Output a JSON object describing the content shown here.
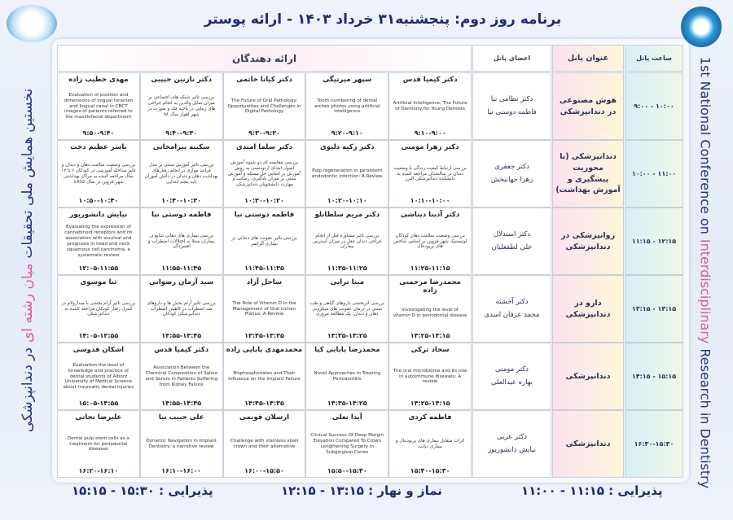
{
  "header": {
    "title": "برنامه روز دوم: پنجشنبه۳۱ خرداد ۱۴۰۳ - ارائه پوستر"
  },
  "side_left": [
    "نخستین همایش ملی تحقیقات",
    "میان رشته ای",
    "در دندانپزشکی"
  ],
  "side_right": [
    "1st National Conference on",
    "Interdisciplinary",
    "Research in Dentistry"
  ],
  "table": {
    "headers": {
      "time": "ساعت پانل",
      "title": "عنوان پانل",
      "members": "اعضای پانل",
      "presenters": "ارائه دهندگان"
    },
    "rows": [
      {
        "time": "۱۰:۰۰ - ۹:۰۰",
        "title": "هوش مصنوعی در دندانپزشکی",
        "members": [
          "دکتر نظامی نیا",
          "فاطمه دوستی نیا"
        ],
        "presenters": [
          {
            "name": "دکتر کیمیا قدس",
            "topic": "Artificial Intelligence: The Future of Dentistry for Young Dentists",
            "time": "۹:۱۰-۹:۰۰"
          },
          {
            "name": "سپهر میرتیگی",
            "topic": "Tooth numbering of dental arches photos using artificial intelligence",
            "time": "۹:۲۰-۹:۱۰"
          },
          {
            "name": "دکتر کیانا خاتمی",
            "topic": "The Future of Oral Pathology: Opportunities and Challenges in Digital Pathology",
            "time": "۹:۳۰-۹:۲۰"
          },
          {
            "name": "دکتر نازنین حبیبی",
            "topic": "بررسی تاثیر شبکه های اجتماعی بر میزان تمایل والدین به انجام جراحی های زیبایی در ناحیه فک و صورت در شهر اهواز سال ۹۸",
            "time": "۹:۴۰-۹:۳۰"
          },
          {
            "name": "مهدی خطیب زاده",
            "topic": "Evaluation of position and dimensions of lingual foramen and lingual canal in CBCT images of patients referred to the maxillofacial department",
            "time": "۹:۵۰-۹:۴۰"
          }
        ]
      },
      {
        "time": "۱۱:۰۰ - ۱۰:۰۰",
        "title": "دندانپزشکی (با محوریت پیشگیری و آموزش بهداشت)",
        "members": [
          "دکتر جعفری",
          "زهرا جهانبخش"
        ],
        "presenters": [
          {
            "name": "دکتر زهرا مومنی",
            "topic": "بررسی ارتباط کیفیت زندگی با وضعیت دندان در سالمندان مراجعه کننده به دانشکده دندانپزشکی البرز",
            "time": "۱۰:۱۰-۱۰:۰۰"
          },
          {
            "name": "دکتر زکیه دلیوی",
            "topic": "Pulp regeneration in persistent endodontic infection: A Review",
            "time": "۱۰:۲۰-۱۰:۱۰"
          },
          {
            "name": "دکتر سلما امیدی",
            "topic": "بررسی مقایسه ای دو شیوه آموزش اصول ابتدای ارتودنسی به روش آموزش بر اساس حل مسئله و آموزش سنتی بر میزان یادگیری، رضایت و مهارت دانشجویان دندانپزشکی",
            "time": "۱۰:۳۰-۱۰:۲۰"
          },
          {
            "name": "سکینه پیرامخانی",
            "topic": "بررسی تاثیر آموزش مبتنی بر مدل فرایند موازی بر انجام رفتارهای بهداشت دهان و دندان در دانش آموزان پایه پنجم ابتدایی",
            "time": "۱۰:۴۰-۱۰:۳۰"
          },
          {
            "name": "یاسر عظیم دخت",
            "topic": "بررسی وضعیت سلامت دهان و دندان و تاثیر مداخله آموزشی در کودکان ۶ تا ۱۲ سال مراجعه کننده به مراکز بهداشتی شهر قزوین در سال 1402",
            "time": "۱۰:۵۰-۱۰:۴۰"
          }
        ]
      },
      {
        "time": "۱۲:۱۵ - ۱۱:۱۵",
        "title": "روانپزشکی در دندانپزشکی",
        "members": [
          "دکتر استدلال",
          "علی لطفعلیان"
        ],
        "presenters": [
          {
            "name": "دکتر آدینا دیناشی",
            "topic": "بررسی وضعیت سلامت دهان کودکان اوتیستیک شهر قزوین بر اساس شاخص های پریودنتال",
            "time": "۱۱:۲۵-۱۱:۱۵"
          },
          {
            "name": "دکتر مریم سلطانلو",
            "topic": "بررسی تاثیر مشاوره قبل از انجام جراحی دندان عقل در میزان استرس بیماران",
            "time": "۱۱:۳۵-۱۱:۲۵"
          },
          {
            "name": "فاطمه دوستی نیا",
            "topic": "بررسی تاثیر عفونت های دندانی در بیماری آلزایمر",
            "time": "۱۱:۴۵-۱۱:۳۵"
          },
          {
            "name": "فاطمه دوستی نیا",
            "topic": "بررسی بیماری های دهانی شایع در بیماران مبتلا به اختلالات اضطراب و افسردگی",
            "time": "۱۱:۵۵-۱۱:۴۵"
          },
          {
            "name": "نیایش دانشوریور",
            "topic": "Evaluating the expression of cannabinoid receptors and its association with survival and prognosis in head and neck squamous cell carcinoma, a systematic review",
            "time": "۱۲:۰۵-۱۱:۵۵"
          }
        ]
      },
      {
        "time": "۱۴:۱۵ - ۱۳:۱۵",
        "title": "دارو در دندانپزشکی",
        "members": [
          "دکتر آخشته",
          "محمد عرفان اسدی"
        ],
        "presenters": [
          {
            "name": "محمدرضا مرحمتی زاده",
            "topic": "Investigating the level of vitamin D in periodontal disease",
            "time": "۱۳:۲۵-۱۳:۱۵"
          },
          {
            "name": "مینا ترابی",
            "topic": "بررسی اثربخشی داروهای گیاهی و طب سنتی در درمان عفونت های میکروبی دهان و دندان: یک مطالعه مروری",
            "time": "۱۳:۳۵-۱۳:۲۵"
          },
          {
            "name": "ساحل آزاد",
            "topic": "The Role of Vitamin D in the Management of Oral Lichen Planus: A Review",
            "time": "۱۳:۴۵-۱۳:۳۵"
          },
          {
            "name": "سید آرمان رضوانی",
            "topic": "بررسی تاثیر آرام بخش ها و داروهای ضد اضطراب در کاهش اضطراب دندانپزشکی کودکان",
            "time": "۱۳:۵۵-۱۳:۴۵"
          },
          {
            "name": "ثنا موسوی",
            "topic": "بررسی تاثیر آرام بخشی با میدازولام در کنترل رفتار کودکان مراجعه کننده به دندانپزشکی",
            "time": "۱۴:۰۵-۱۳:۵۵"
          }
        ]
      },
      {
        "time": "۱۵:۱۵ - ۱۴:۱۵",
        "title": "دندانپزشکی",
        "members": [
          "دکتر مومنی",
          "بهاره عبدالعلی"
        ],
        "presenters": [
          {
            "name": "سجاد ترکی",
            "topic": "The oral microbiome and its role in autoimmune diseases: A review",
            "time": "۱۴:۲۵-۱۴:۱۵"
          },
          {
            "name": "محمدرضا بابایی کیا",
            "topic": "Novel Approaches in Treating Periodontitis",
            "time": "۱۴:۳۵-۱۴:۲۵"
          },
          {
            "name": "محمدمهدی بابایی زاده",
            "topic": "Bisphosphonates and Their Influence on the Implant Failure",
            "time": "۱۴:۴۵-۱۴:۳۵"
          },
          {
            "name": "دکتر کیمیا قدس",
            "topic": "Association Between the Chemical Composition of Saliva and Serum in Patients Suffering from Kidney Failure",
            "time": "۱۴:۵۵-۱۴:۴۵"
          },
          {
            "name": "اشکان قدوسی",
            "topic": "Evaluation the level of knowledge and practice of dental students of Alborz University of Medical Science about traumatic dental injuries",
            "time": "۱۵:۰۵-۱۴:۵۵"
          }
        ]
      },
      {
        "time": "۱۶:۳۰-۱۵:۳۰",
        "title": "دندانپزشکی",
        "members": [
          "دکتر عربی",
          "نیایش دانشوریور"
        ],
        "presenters": [
          {
            "name": "فاطمه کردی",
            "topic": "اثرات متقابل بیماری های پریودنتال و بیماری دیابت",
            "time": "۱۵:۴۰-۱۵:۳۰"
          },
          {
            "name": "آیدا نعلی",
            "topic": "Clinical Success Of Deep Margin Elevation Compared To Crown Lengthening Surgery In Subgingival Caries",
            "time": "۱۵:۵۰-۱۵:۴۰"
          },
          {
            "name": "ارسلان قویمی",
            "topic": "Challenge with stainless steel crown and their alternative",
            "time": "۱۶:۰۰-۱۵:۵۰"
          },
          {
            "name": "علی حبیب نیا",
            "topic": "Dynamic Navigation in Implant Dentistry: a narrative review",
            "time": "۱۶:۱۰-۱۶:۰۰"
          },
          {
            "name": "علیرضا نجاتی",
            "topic": "Dental pulp stem cells as a treatment for periodontal diseases",
            "time": "۱۶:۲۰-۱۶:۱۰"
          }
        ]
      }
    ]
  },
  "footer": [
    "پذیرایی : ۱۱:۱۵ - ۱۱:۰۰",
    "نماز و نهار : ۱۳:۱۵ - ۱۲:۱۵",
    "پذیرایی : ۱۵:۳۰ - ۱۵:۱۵"
  ]
}
